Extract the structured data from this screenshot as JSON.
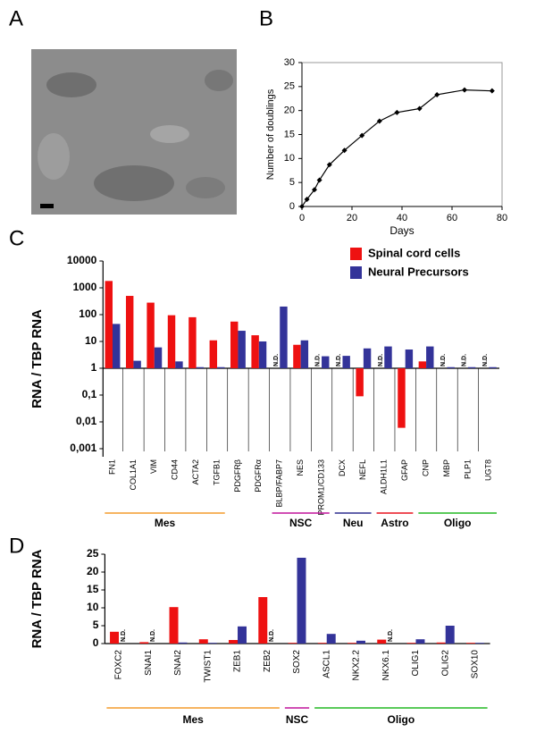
{
  "image_panel": {
    "label": "A"
  },
  "chart_data": [
    {
      "type": "line",
      "panel": "B",
      "xlabel": "Days",
      "ylabel": "Number of doublings",
      "x": [
        0,
        2,
        5,
        7,
        11,
        17,
        24,
        31,
        38,
        47,
        54,
        65,
        76
      ],
      "values": [
        0,
        1.5,
        3.5,
        5.5,
        8.7,
        11.7,
        14.8,
        17.8,
        19.6,
        20.4,
        23.3,
        24.3,
        24.1
      ],
      "color": "#000000",
      "xlim": [
        0,
        80
      ],
      "xticks": [
        0,
        20,
        40,
        60,
        80
      ],
      "ylim": [
        0,
        30
      ],
      "yticks": [
        0,
        5,
        10,
        15,
        20,
        25,
        30
      ]
    },
    {
      "type": "bar",
      "panel": "C",
      "ylabel": "RNA / TBP RNA",
      "log_scale": true,
      "legend": "top-right",
      "categories": [
        "FN1",
        "COL1A1",
        "VIM",
        "CD44",
        "ACTA2",
        "TGFB1",
        "PDGFRβ",
        "PDGFRα",
        "BLBP/FABP7",
        "NES",
        "PROM1/CD133",
        "DCX",
        "NEFL",
        "ALDH1L1",
        "GFAP",
        "CNP",
        "MBP",
        "PLP1",
        "UGT8"
      ],
      "category_groups": [
        "Mes",
        "Mes",
        "Mes",
        "Mes",
        "Mes",
        "Mes",
        null,
        null,
        "NSC",
        "NSC",
        "NSC",
        "Neu",
        "Neu",
        "Astro",
        "Astro",
        "Oligo",
        "Oligo",
        "Oligo",
        "Oligo"
      ],
      "groups": [
        {
          "label": "Mes",
          "color": "#f39c2b"
        },
        {
          "label": "NSC",
          "color": "#c0139c"
        },
        {
          "label": "Neu",
          "color": "#2e2e8f"
        },
        {
          "label": "Astro",
          "color": "#e8141e"
        },
        {
          "label": "Oligo",
          "color": "#22b822"
        }
      ],
      "series": [
        {
          "name": "Spinal cord cells",
          "color": "#ee1111",
          "values": [
            1800,
            500,
            280,
            95,
            80,
            11,
            55,
            17,
            null,
            7.5,
            null,
            null,
            0.09,
            null,
            0.006,
            1.8,
            null,
            null,
            null
          ],
          "value_labels": [
            null,
            null,
            null,
            null,
            null,
            null,
            null,
            null,
            "N.D.",
            null,
            "N.D.",
            "N.D.",
            null,
            "N.D.",
            null,
            null,
            "N.D.",
            "N.D.",
            "N.D."
          ]
        },
        {
          "name": "Neural Precursors",
          "color": "#333399",
          "values": [
            45,
            1.9,
            6,
            1.8,
            1.1,
            1.1,
            25,
            10,
            200,
            11,
            2.8,
            2.9,
            5.5,
            6.5,
            5,
            6.5,
            1.1,
            1.1,
            1.1
          ]
        }
      ],
      "ylim": [
        0.0005,
        10000
      ],
      "yticks": [
        10000,
        1000,
        100,
        10,
        1,
        {
          "value": 0.1,
          "label": "0,1"
        },
        {
          "value": 0.01,
          "label": "0,01"
        },
        {
          "value": 0.001,
          "label": "0,001"
        }
      ]
    },
    {
      "type": "bar",
      "panel": "D",
      "ylabel": "RNA / TBP RNA",
      "log_scale": false,
      "categories": [
        "FOXC2",
        "SNAI1",
        "SNAI2",
        "TWIST1",
        "ZEB1",
        "ZEB2",
        "SOX2",
        "ASCL1",
        "NKX2.2",
        "NKX6.1",
        "OLIG1",
        "OLIG2",
        "SOX10"
      ],
      "category_groups": [
        "Mes",
        "Mes",
        "Mes",
        "Mes",
        "Mes",
        "Mes",
        "NSC",
        "Oligo",
        "Oligo",
        "Oligo",
        "Oligo",
        "Oligo",
        "Oligo"
      ],
      "groups": [
        {
          "label": "Mes",
          "color": "#f39c2b"
        },
        {
          "label": "NSC",
          "color": "#c0139c"
        },
        {
          "label": "Oligo",
          "color": "#22b822"
        }
      ],
      "series": [
        {
          "name": "Spinal cord cells",
          "color": "#ee1111",
          "values": [
            3.3,
            0.4,
            10.2,
            1.2,
            1.0,
            13,
            0.2,
            0.2,
            0.2,
            1.1,
            0.2,
            0.3,
            0.2
          ]
        },
        {
          "name": "Neural Precursors",
          "color": "#333399",
          "values": [
            null,
            null,
            0.3,
            0.2,
            4.8,
            null,
            24,
            2.7,
            0.8,
            null,
            1.2,
            5,
            0.2
          ],
          "value_labels": [
            "N.D.",
            "N.D.",
            null,
            null,
            null,
            "N.D.",
            null,
            null,
            null,
            "N.D.",
            null,
            null,
            null
          ]
        }
      ],
      "ylim": [
        0,
        25
      ],
      "yticks": [
        0,
        5,
        10,
        15,
        20,
        25
      ]
    }
  ]
}
